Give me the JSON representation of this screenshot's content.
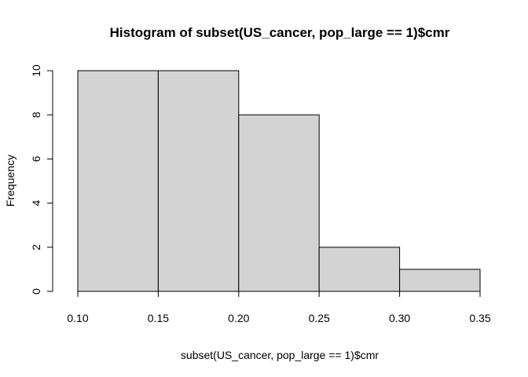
{
  "chart_data": {
    "type": "bar",
    "title": "Histogram of subset(US_cancer, pop_large == 1)$cmr",
    "xlabel": "subset(US_cancer, pop_large == 1)$cmr",
    "ylabel": "Frequency",
    "bins": [
      {
        "from": 0.1,
        "to": 0.15,
        "count": 10
      },
      {
        "from": 0.15,
        "to": 0.2,
        "count": 10
      },
      {
        "from": 0.2,
        "to": 0.25,
        "count": 8
      },
      {
        "from": 0.25,
        "to": 0.3,
        "count": 2
      },
      {
        "from": 0.3,
        "to": 0.35,
        "count": 1
      }
    ],
    "xlim": [
      0.1,
      0.35
    ],
    "ylim": [
      0,
      10
    ],
    "x_ticks": [
      "0.10",
      "0.15",
      "0.20",
      "0.25",
      "0.30",
      "0.35"
    ],
    "y_ticks": [
      "0",
      "2",
      "4",
      "6",
      "8",
      "10"
    ],
    "bar_color": "#d3d3d3",
    "grid": false
  }
}
